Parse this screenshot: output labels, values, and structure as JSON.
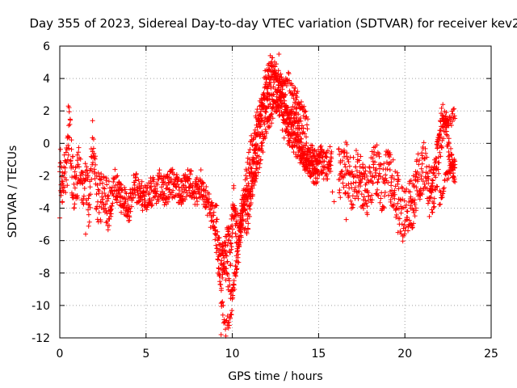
{
  "colors": {
    "series": "#ff0000",
    "background": "#ffffff",
    "frame": "#000000",
    "grid": "#a0a0a0"
  },
  "chart_data": {
    "type": "scatter",
    "title": "Day 355 of 2023, Sidereal Day-to-day VTEC variation (SDTVAR) for receiver kev2",
    "xlabel": "GPS time / hours",
    "ylabel": "SDTVAR / TECUs",
    "xlim": [
      0,
      25
    ],
    "ylim": [
      -12,
      6
    ],
    "xticks": [
      0,
      5,
      10,
      15,
      20,
      25
    ],
    "yticks": [
      -12,
      -10,
      -8,
      -6,
      -4,
      -2,
      0,
      2,
      4,
      6
    ],
    "grid": true,
    "marker": "plus",
    "series": [
      {
        "name": "SDTVAR",
        "keypoints": {
          "x": [
            0.0,
            0.2,
            0.4,
            0.55,
            0.7,
            0.9,
            1.1,
            1.3,
            1.5,
            1.7,
            1.9,
            2.1,
            2.3,
            2.5,
            2.8,
            3.0,
            3.2,
            3.4,
            3.6,
            3.8,
            4.0,
            4.3,
            4.6,
            4.9,
            5.2,
            5.5,
            5.8,
            6.1,
            6.4,
            6.7,
            7.0,
            7.3,
            7.6,
            7.9,
            8.2,
            8.5,
            8.8,
            9.1,
            9.3,
            9.6,
            9.9,
            10.1,
            10.3,
            10.6,
            10.9,
            11.2,
            11.5,
            11.8,
            12.1,
            12.4,
            12.7,
            13.0,
            13.3,
            13.6,
            13.9,
            14.2,
            14.5,
            14.8,
            15.1,
            15.4,
            15.7,
            16.3,
            16.6,
            16.9,
            17.2,
            17.5,
            17.8,
            18.1,
            18.4,
            18.7,
            19.0,
            19.3,
            19.6,
            19.9,
            20.2,
            20.5,
            20.8,
            21.1,
            21.4,
            21.7,
            22.0,
            22.3,
            22.6,
            22.9
          ],
          "y": [
            -1.5,
            -2.5,
            -1.5,
            1.0,
            -2.0,
            -3.0,
            -1.5,
            -2.5,
            -2.0,
            -4.0,
            0.5,
            -3.0,
            -3.5,
            -3.0,
            -4.0,
            -3.5,
            -2.5,
            -3.0,
            -3.5,
            -3.5,
            -4.0,
            -2.5,
            -3.0,
            -3.5,
            -3.0,
            -3.0,
            -2.5,
            -3.0,
            -2.5,
            -2.5,
            -3.0,
            -2.5,
            -2.5,
            -3.0,
            -2.5,
            -3.5,
            -4.5,
            -5.0,
            -8.5,
            -6.0,
            -6.5,
            -3.0,
            -7.0,
            -4.0,
            -4.5,
            -2.0,
            0.0,
            2.0,
            2.5,
            3.5,
            3.0,
            1.5,
            1.0,
            1.5,
            0.5,
            -0.5,
            -1.0,
            -1.5,
            -1.0,
            -1.5,
            -1.0,
            -2.0,
            -1.5,
            -2.5,
            -2.0,
            -2.5,
            -3.0,
            -2.0,
            -1.5,
            -3.0,
            -1.5,
            -2.5,
            -3.5,
            -4.5,
            -4.0,
            -3.5,
            -2.0,
            -1.5,
            -3.0,
            -2.5,
            -0.5,
            1.5,
            -1.0,
            -2.0
          ]
        },
        "branches": [
          {
            "x": [
              9.0,
              9.3,
              9.6,
              9.9,
              10.2,
              10.5,
              10.8,
              11.1,
              11.4,
              11.7,
              12.0,
              12.3,
              12.6,
              12.9,
              13.2,
              13.5,
              13.8,
              14.1,
              14.4,
              14.7,
              15.0
            ],
            "y": [
              -5.5,
              -9.0,
              -11.5,
              -10.5,
              -8.0,
              -5.0,
              -2.0,
              0.0,
              1.5,
              2.5,
              3.5,
              4.5,
              3.5,
              2.0,
              1.0,
              0.0,
              -0.5,
              -1.0,
              -1.5,
              -1.5,
              -1.5
            ]
          },
          {
            "x": [
              9.2,
              9.6,
              10.0,
              10.4,
              10.8,
              11.2,
              11.6,
              11.9,
              12.2,
              12.5,
              12.8,
              13.1,
              13.4,
              13.7,
              14.0,
              14.3,
              14.6,
              15.0
            ],
            "y": [
              -6.0,
              -8.0,
              -9.5,
              -6.0,
              -3.0,
              -1.0,
              1.5,
              4.0,
              5.0,
              4.5,
              4.0,
              2.5,
              1.5,
              0.5,
              -0.5,
              -1.0,
              -1.0,
              -1.5
            ]
          },
          {
            "x": [
              10.0,
              10.4,
              10.8,
              11.2,
              11.6,
              12.0,
              12.4,
              12.8,
              13.2,
              13.6,
              14.0,
              14.4
            ],
            "y": [
              -4.0,
              -5.0,
              -3.5,
              -2.5,
              -1.0,
              1.0,
              2.0,
              3.0,
              4.0,
              3.0,
              2.5,
              1.0
            ]
          },
          {
            "x": [
              21.4,
              21.8,
              22.1,
              22.4,
              22.7,
              22.9
            ],
            "y": [
              -3.5,
              -1.0,
              2.0,
              1.5,
              1.5,
              2.0
            ]
          },
          {
            "x": [
              22.0,
              22.3,
              22.6,
              22.9
            ],
            "y": [
              -3.5,
              -2.5,
              -1.5,
              -1.0
            ]
          }
        ],
        "outliers": [
          {
            "x": 15.8,
            "y": -3.0
          },
          {
            "x": 15.9,
            "y": -3.6
          },
          {
            "x": 16.6,
            "y": -4.7
          },
          {
            "x": 0.0,
            "y": -4.6
          },
          {
            "x": 1.5,
            "y": -5.6
          },
          {
            "x": 9.35,
            "y": -11.8
          },
          {
            "x": 12.7,
            "y": 5.5
          },
          {
            "x": 0.5,
            "y": 2.3
          },
          {
            "x": 1.9,
            "y": 1.4
          },
          {
            "x": 19.6,
            "y": -5.5
          },
          {
            "x": 22.2,
            "y": 2.4
          }
        ]
      }
    ]
  }
}
